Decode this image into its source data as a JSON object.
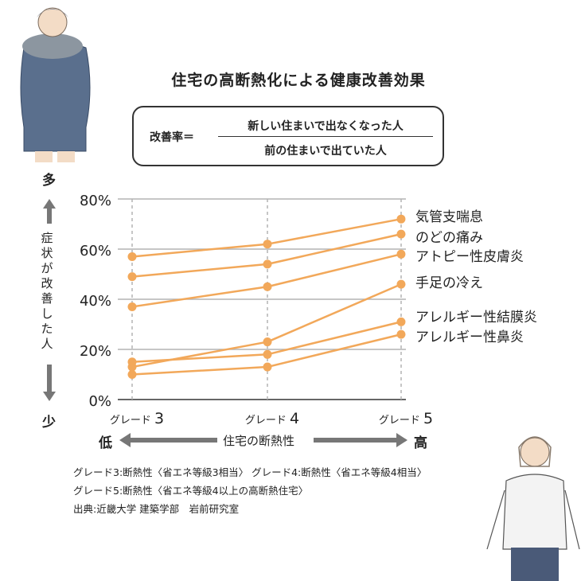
{
  "title": "住宅の高断熱化による健康改善効果",
  "formula": {
    "label": "改善率＝",
    "numerator": "新しい住まいで出なくなった人",
    "denominator": "前の住まいで出ていた人"
  },
  "y_axis": {
    "top_label": "多",
    "bottom_label": "少",
    "label": "症状が改善した人"
  },
  "x_axis": {
    "low_label": "低",
    "high_label": "高",
    "label": "住宅の断熱性"
  },
  "notes": [
    "グレード3:断熱性〈省エネ等級3相当〉 グレード4:断熱性〈省エネ等級4相当〉",
    "グレード5:断熱性〈省エネ等級4以上の高断熱住宅〉",
    "出典:近畿大学 建築学部　岩前研究室"
  ],
  "colors": {
    "line": "#f2a85a",
    "grid": "#b3b3b3",
    "axis_arrow": "#777777",
    "text": "#222222"
  },
  "chart_data": {
    "type": "line",
    "categories": [
      "グレード 3",
      "グレード 4",
      "グレード 5"
    ],
    "yticks": [
      "0%",
      "20%",
      "40%",
      "60%",
      "80%"
    ],
    "ylim": [
      0,
      80
    ],
    "grid": true,
    "legend": "right-end labels",
    "series": [
      {
        "name": "気管支喘息",
        "values": [
          57,
          62,
          72
        ]
      },
      {
        "name": "のどの痛み",
        "values": [
          49,
          54,
          66
        ]
      },
      {
        "name": "アトピー性皮膚炎",
        "values": [
          37,
          45,
          58
        ]
      },
      {
        "name": "手足の冷え",
        "values": [
          13,
          23,
          46
        ]
      },
      {
        "name": "アレルギー性結膜炎",
        "values": [
          15,
          18,
          31
        ]
      },
      {
        "name": "アレルギー性鼻炎",
        "values": [
          10,
          13,
          26
        ]
      }
    ]
  }
}
